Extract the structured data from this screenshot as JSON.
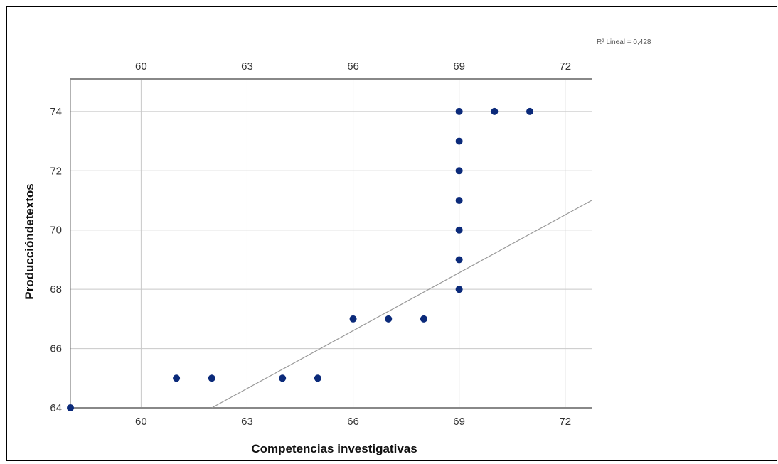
{
  "chart_data": {
    "type": "scatter",
    "xlabel": "Competencias investigativas",
    "ylabel": "Produccióndetextos",
    "xlim": [
      58,
      72.75
    ],
    "ylim": [
      64,
      75.1
    ],
    "x_ticks": [
      60,
      63,
      66,
      69,
      72
    ],
    "y_ticks": [
      64,
      66,
      68,
      70,
      72,
      74
    ],
    "grid": true,
    "fit_label": "R² Lineal = 0,428",
    "fit_line": {
      "x": [
        62,
        72.75
      ],
      "y": [
        64,
        71
      ]
    },
    "point_color": "#0b2a7a",
    "line_color": "#999999",
    "points": [
      {
        "x": 58,
        "y": 64
      },
      {
        "x": 61,
        "y": 65
      },
      {
        "x": 62,
        "y": 65
      },
      {
        "x": 64,
        "y": 65
      },
      {
        "x": 65,
        "y": 65
      },
      {
        "x": 66,
        "y": 67
      },
      {
        "x": 67,
        "y": 67
      },
      {
        "x": 68,
        "y": 67
      },
      {
        "x": 69,
        "y": 68
      },
      {
        "x": 69,
        "y": 69
      },
      {
        "x": 69,
        "y": 70
      },
      {
        "x": 69,
        "y": 71
      },
      {
        "x": 69,
        "y": 72
      },
      {
        "x": 69,
        "y": 73
      },
      {
        "x": 69,
        "y": 74
      },
      {
        "x": 70,
        "y": 74
      },
      {
        "x": 71,
        "y": 74
      }
    ]
  }
}
